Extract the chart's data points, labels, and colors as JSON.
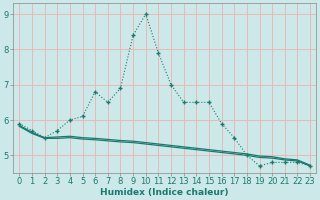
{
  "xlabel": "Humidex (Indice chaleur)",
  "bg_color": "#cce8e8",
  "grid_color": "#e8b8b8",
  "line_color": "#1a7a6e",
  "xlim": [
    -0.5,
    23.5
  ],
  "ylim": [
    4.5,
    9.3
  ],
  "yticks": [
    5,
    6,
    7,
    8,
    9
  ],
  "xticks": [
    0,
    1,
    2,
    3,
    4,
    5,
    6,
    7,
    8,
    9,
    10,
    11,
    12,
    13,
    14,
    15,
    16,
    17,
    18,
    19,
    20,
    21,
    22,
    23
  ],
  "series1_x": [
    0,
    1,
    2,
    3,
    4,
    5,
    6,
    7,
    8,
    9,
    10,
    11,
    12,
    13,
    14,
    15,
    16,
    17,
    18,
    19,
    20,
    21,
    22,
    23
  ],
  "series1_y": [
    5.9,
    5.7,
    5.5,
    5.7,
    6.0,
    6.1,
    6.8,
    6.5,
    6.9,
    8.4,
    9.0,
    7.9,
    7.0,
    6.5,
    6.5,
    6.5,
    5.9,
    5.5,
    5.0,
    4.7,
    4.8,
    4.8,
    4.8,
    4.7
  ],
  "series2_x": [
    0,
    1,
    2,
    3,
    4,
    5,
    6,
    7,
    8,
    9,
    10,
    11,
    12,
    13,
    14,
    15,
    16,
    17,
    18,
    19,
    20,
    21,
    22,
    23
  ],
  "series2_y": [
    5.85,
    5.65,
    5.5,
    5.52,
    5.54,
    5.5,
    5.48,
    5.45,
    5.42,
    5.4,
    5.36,
    5.32,
    5.28,
    5.24,
    5.2,
    5.16,
    5.12,
    5.08,
    5.04,
    4.98,
    4.96,
    4.9,
    4.87,
    4.72
  ],
  "series3_x": [
    0,
    1,
    2,
    3,
    4,
    5,
    6,
    7,
    8,
    9,
    10,
    11,
    12,
    13,
    14,
    15,
    16,
    17,
    18,
    19,
    20,
    21,
    22,
    23
  ],
  "series3_y": [
    5.82,
    5.62,
    5.48,
    5.48,
    5.5,
    5.46,
    5.44,
    5.41,
    5.38,
    5.36,
    5.32,
    5.28,
    5.24,
    5.2,
    5.16,
    5.12,
    5.08,
    5.04,
    5.0,
    4.94,
    4.92,
    4.87,
    4.84,
    4.7
  ]
}
